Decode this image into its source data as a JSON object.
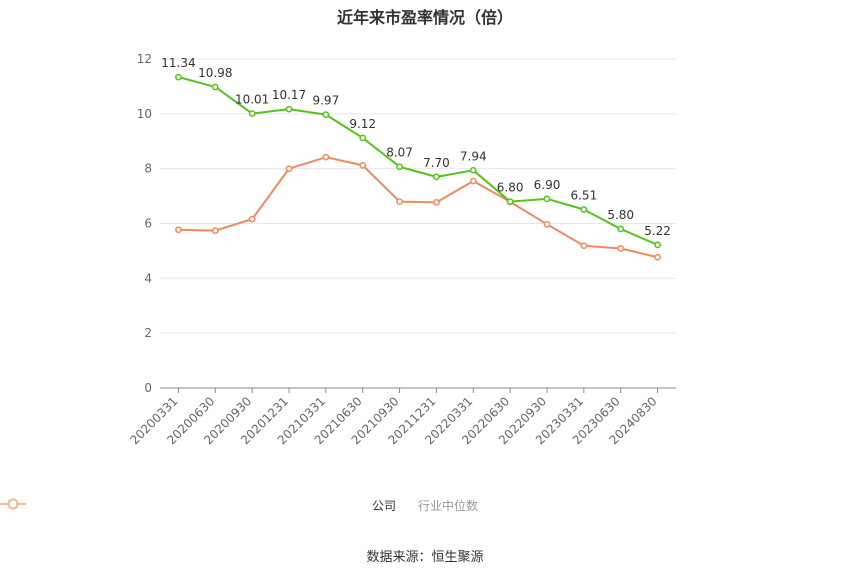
{
  "title": "近年来市盈率情况（倍）",
  "source": "数据来源：恒生聚源",
  "colors": {
    "company": "#52c41a",
    "industry": "#f0895e",
    "grid": "#e4e6ef",
    "axis": "#888888"
  },
  "legend": [
    {
      "label": "公司",
      "color": "#52c41a"
    },
    {
      "label": "行业中位数",
      "color": "#f6b89a"
    }
  ],
  "chart_data": {
    "type": "line",
    "title": "近年来市盈率情况（倍）",
    "categories": [
      "20200331",
      "20200630",
      "20200930",
      "20201231",
      "20210331",
      "20210630",
      "20210930",
      "20211231",
      "20220331",
      "20220630",
      "20220930",
      "20230331",
      "20230630",
      "20240830"
    ],
    "ylim": [
      0,
      12
    ],
    "yticks": [
      0,
      2,
      4,
      6,
      8,
      10,
      12
    ],
    "grid": true,
    "legend_position": "bottom",
    "series": [
      {
        "name": "公司",
        "values": [
          11.34,
          10.98,
          10.01,
          10.17,
          9.97,
          9.12,
          8.07,
          7.7,
          7.94,
          6.8,
          6.9,
          6.51,
          5.8,
          5.22
        ],
        "labels": [
          "11.34",
          "10.98",
          "10.01",
          "10.17",
          "9.97",
          "9.12",
          "8.07",
          "7.70",
          "7.94",
          "6.80",
          "6.90",
          "6.51",
          "5.80",
          "5.22"
        ]
      },
      {
        "name": "行业中位数",
        "values": [
          5.77,
          5.74,
          6.16,
          8.0,
          8.42,
          8.12,
          6.8,
          6.77,
          7.55,
          6.79,
          5.97,
          5.19,
          5.09,
          4.77
        ]
      }
    ]
  }
}
